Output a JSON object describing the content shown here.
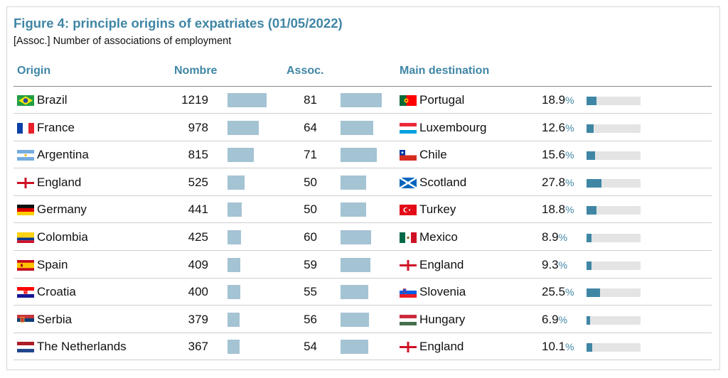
{
  "header": {
    "title": "Figure 4: principle origins of expatriates (01/05/2022)",
    "subtitle": "[Assoc.] Number of associations of employment"
  },
  "colors": {
    "accent": "#3f86a5",
    "bar_light": "#a4c3d3",
    "track": "#e4e4e4"
  },
  "chart_data": {
    "type": "table",
    "columns": [
      "Origin",
      "Nombre",
      "Assoc.",
      "Main destination"
    ],
    "percent_unit": "%",
    "nombre_max": 1219,
    "assoc_max": 81,
    "percent_max": 100,
    "rows": [
      {
        "origin": "Brazil",
        "origin_flag": "brazil-flag-icon",
        "nombre": 1219,
        "assoc": 81,
        "destination": "Portugal",
        "dest_flag": "portugal-flag-icon",
        "percent": "18.9"
      },
      {
        "origin": "France",
        "origin_flag": "france-flag-icon",
        "nombre": 978,
        "assoc": 64,
        "destination": "Luxembourg",
        "dest_flag": "luxembourg-flag-icon",
        "percent": "12.6"
      },
      {
        "origin": "Argentina",
        "origin_flag": "argentina-flag-icon",
        "nombre": 815,
        "assoc": 71,
        "destination": "Chile",
        "dest_flag": "chile-flag-icon",
        "percent": "15.6"
      },
      {
        "origin": "England",
        "origin_flag": "england-flag-icon",
        "nombre": 525,
        "assoc": 50,
        "destination": "Scotland",
        "dest_flag": "scotland-flag-icon",
        "percent": "27.8"
      },
      {
        "origin": "Germany",
        "origin_flag": "germany-flag-icon",
        "nombre": 441,
        "assoc": 50,
        "destination": "Turkey",
        "dest_flag": "turkey-flag-icon",
        "percent": "18.8"
      },
      {
        "origin": "Colombia",
        "origin_flag": "colombia-flag-icon",
        "nombre": 425,
        "assoc": 60,
        "destination": "Mexico",
        "dest_flag": "mexico-flag-icon",
        "percent": "8.9"
      },
      {
        "origin": "Spain",
        "origin_flag": "spain-flag-icon",
        "nombre": 409,
        "assoc": 59,
        "destination": "England",
        "dest_flag": "england-flag-icon",
        "percent": "9.3"
      },
      {
        "origin": "Croatia",
        "origin_flag": "croatia-flag-icon",
        "nombre": 400,
        "assoc": 55,
        "destination": "Slovenia",
        "dest_flag": "slovenia-flag-icon",
        "percent": "25.5"
      },
      {
        "origin": "Serbia",
        "origin_flag": "serbia-flag-icon",
        "nombre": 379,
        "assoc": 56,
        "destination": "Hungary",
        "dest_flag": "hungary-flag-icon",
        "percent": "6.9"
      },
      {
        "origin": "The Netherlands",
        "origin_flag": "netherlands-flag-icon",
        "nombre": 367,
        "assoc": 54,
        "destination": "England",
        "dest_flag": "england-flag-icon",
        "percent": "10.1"
      }
    ]
  }
}
